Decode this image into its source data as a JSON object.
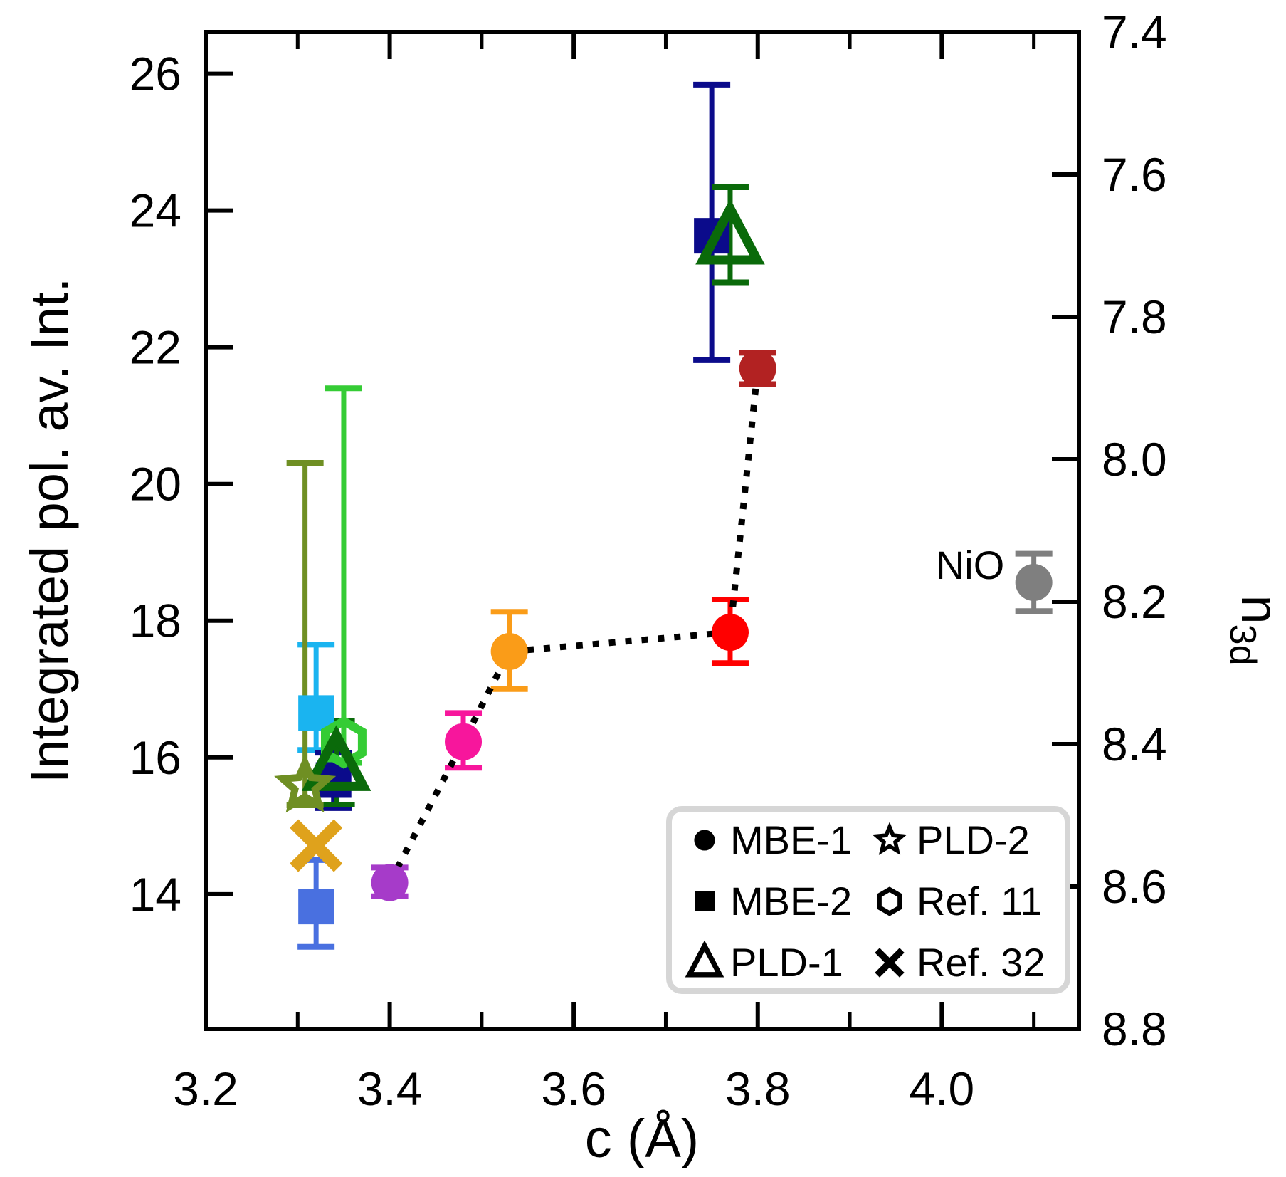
{
  "figure": {
    "background": "#ffffff",
    "axis_color": "#000000"
  },
  "chart_data": {
    "type": "scatter",
    "title": "",
    "xlabel": "c (Å)",
    "ylabel_left": "Integrated pol. av. Int.",
    "ylabel_right_main": "n",
    "ylabel_right_sub": "3d",
    "grid": false,
    "xlim": [
      3.2,
      4.149
    ],
    "x_major_ticks": [
      {
        "v": 3.2,
        "label": "3.2"
      },
      {
        "v": 3.4,
        "label": "3.4"
      },
      {
        "v": 3.6,
        "label": "3.6"
      },
      {
        "v": 3.8,
        "label": "3.8"
      },
      {
        "v": 4.0,
        "label": "4.0"
      }
    ],
    "x_minor_ticks": [
      3.3,
      3.5,
      3.7,
      3.9,
      4.1
    ],
    "ylim_left": [
      12.03,
      26.61
    ],
    "y_left_ticks": [
      {
        "v": 14,
        "label": "14"
      },
      {
        "v": 16,
        "label": "16"
      },
      {
        "v": 18,
        "label": "18"
      },
      {
        "v": 20,
        "label": "20"
      },
      {
        "v": 22,
        "label": "22"
      },
      {
        "v": 24,
        "label": "24"
      },
      {
        "v": 26,
        "label": "26"
      }
    ],
    "ylim_right": [
      7.4,
      8.8
    ],
    "right_axis_inverted": true,
    "y_right_ticks": [
      {
        "v": 7.4,
        "label": "7.4"
      },
      {
        "v": 7.6,
        "label": "7.6"
      },
      {
        "v": 7.8,
        "label": "7.8"
      },
      {
        "v": 8.0,
        "label": "8.0"
      },
      {
        "v": 8.2,
        "label": "8.2"
      },
      {
        "v": 8.4,
        "label": "8.4"
      },
      {
        "v": 8.6,
        "label": "8.6"
      },
      {
        "v": 8.8,
        "label": "8.8"
      }
    ],
    "connector": {
      "series": "MBE-1",
      "style": "dotted",
      "color": "#000000",
      "point_count": 5
    },
    "series": [
      {
        "name": "MBE-1",
        "marker": "circle",
        "filled": true,
        "points": [
          {
            "c": 3.4,
            "y": 14.17,
            "err_up": 0.22,
            "err_dn": 0.2,
            "color": "#a63bc9"
          },
          {
            "c": 3.48,
            "y": 16.23,
            "err_up": 0.42,
            "err_dn": 0.38,
            "color": "#f7169c"
          },
          {
            "c": 3.53,
            "y": 17.55,
            "err_up": 0.58,
            "err_dn": 0.55,
            "color": "#fa9c18"
          },
          {
            "c": 3.77,
            "y": 17.83,
            "err_up": 0.48,
            "err_dn": 0.45,
            "color": "#ff0000"
          },
          {
            "c": 3.8,
            "y": 21.69,
            "err_up": 0.23,
            "err_dn": 0.23,
            "color": "#b22222"
          },
          {
            "c": 4.1,
            "y": 18.56,
            "err_up": 0.42,
            "err_dn": 0.42,
            "color": "#7f7f7f",
            "label": "NiO"
          }
        ]
      },
      {
        "name": "MBE-2",
        "marker": "square",
        "filled": true,
        "points": [
          {
            "c": 3.32,
            "y": 16.65,
            "err_up": 1.0,
            "err_dn": 0.54,
            "color": "#1ab4f0"
          },
          {
            "c": 3.339,
            "y": 15.67,
            "err_up": 0.4,
            "err_dn": 0.41,
            "color": "#0b0b8b"
          },
          {
            "c": 3.32,
            "y": 13.82,
            "err_up": 0.68,
            "err_dn": 0.59,
            "color": "#4970e0"
          },
          {
            "c": 3.75,
            "y": 23.63,
            "err_up": 2.21,
            "err_dn": 1.82,
            "color": "#0b0b8b"
          }
        ]
      },
      {
        "name": "Ref. 11",
        "marker": "hexagon",
        "filled": false,
        "points": [
          {
            "c": 3.35,
            "y": 16.22,
            "err_up": 5.18,
            "err_dn": 0.3,
            "color": "#35cc35"
          }
        ]
      },
      {
        "name": "PLD-1",
        "marker": "triangle",
        "filled": false,
        "points": [
          {
            "c": 3.342,
            "y": 15.89,
            "err_up": 0.65,
            "err_dn": 0.58,
            "color": "#0a6a0a"
          },
          {
            "c": 3.77,
            "y": 23.59,
            "err_up": 0.75,
            "err_dn": 0.64,
            "color": "#0a6a0a"
          }
        ]
      },
      {
        "name": "PLD-2",
        "marker": "star",
        "filled": false,
        "points": [
          {
            "c": 3.308,
            "y": 15.58,
            "err_up": 4.73,
            "err_dn": 0.28,
            "color": "#6f8f23"
          }
        ]
      },
      {
        "name": "Ref. 32",
        "marker": "x",
        "filled": true,
        "points": [
          {
            "c": 3.32,
            "y": 14.71,
            "err_up": 0,
            "err_dn": 0,
            "color": "#dfa21c"
          }
        ]
      }
    ],
    "annotations": [
      {
        "text": "NiO",
        "color": "#8f8f8f",
        "x": 4.068,
        "y": 18.8,
        "anchor": "end"
      }
    ]
  },
  "legend": {
    "position": "lower right",
    "entries": [
      {
        "marker": "circle",
        "filled": true,
        "label": "MBE-1"
      },
      {
        "marker": "square",
        "filled": true,
        "label": "MBE-2"
      },
      {
        "marker": "triangle",
        "filled": false,
        "label": "PLD-1"
      },
      {
        "marker": "star",
        "filled": false,
        "label": "PLD-2"
      },
      {
        "marker": "hexagon",
        "filled": false,
        "label": "Ref. 11"
      },
      {
        "marker": "x",
        "filled": true,
        "label": "Ref. 32"
      }
    ],
    "border_color": "#d6d6d6",
    "fill_color": "#ffffff"
  }
}
